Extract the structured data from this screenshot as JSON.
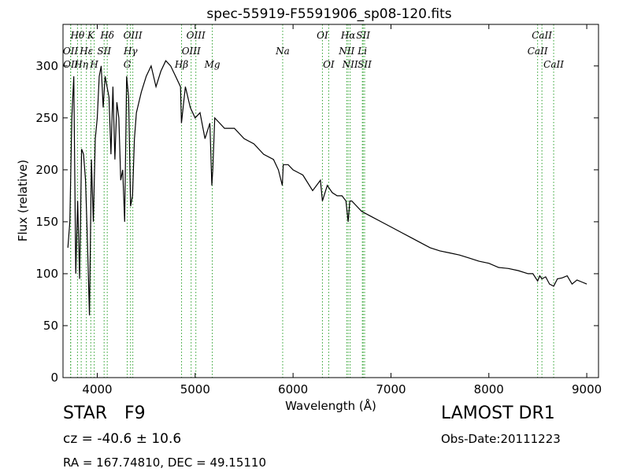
{
  "chart_data": {
    "type": "line",
    "title": "spec-55919-F5591906_sp08-120.fits",
    "xlabel": "Wavelength (Å)",
    "ylabel": "Flux (relative)",
    "xlim": [
      3650,
      9120
    ],
    "ylim": [
      0,
      340
    ],
    "xticks": [
      4000,
      5000,
      6000,
      7000,
      8000,
      9000
    ],
    "yticks": [
      0,
      50,
      100,
      150,
      200,
      250,
      300
    ],
    "grid": false,
    "series": [
      {
        "color": "#000000",
        "x": [
          3700,
          3720,
          3740,
          3760,
          3780,
          3800,
          3820,
          3840,
          3860,
          3880,
          3900,
          3920,
          3940,
          3960,
          3980,
          4000,
          4020,
          4040,
          4060,
          4080,
          4100,
          4120,
          4140,
          4160,
          4180,
          4200,
          4220,
          4240,
          4260,
          4280,
          4300,
          4320,
          4340,
          4360,
          4380,
          4400,
          4450,
          4500,
          4550,
          4600,
          4650,
          4700,
          4750,
          4800,
          4850,
          4860,
          4900,
          4950,
          5000,
          5050,
          5100,
          5150,
          5170,
          5180,
          5200,
          5250,
          5300,
          5400,
          5500,
          5600,
          5700,
          5800,
          5850,
          5890,
          5900,
          5950,
          6000,
          6100,
          6200,
          6280,
          6300,
          6350,
          6400,
          6450,
          6500,
          6540,
          6563,
          6580,
          6600,
          6700,
          6800,
          6900,
          7000,
          7100,
          7200,
          7300,
          7400,
          7500,
          7600,
          7700,
          7800,
          7900,
          8000,
          8100,
          8200,
          8300,
          8400,
          8450,
          8498,
          8520,
          8542,
          8580,
          8620,
          8662,
          8700,
          8750,
          8800,
          8850,
          8900,
          8950,
          9000
        ],
        "values": [
          125,
          150,
          250,
          290,
          100,
          170,
          95,
          220,
          215,
          190,
          130,
          60,
          210,
          150,
          230,
          250,
          290,
          300,
          260,
          290,
          280,
          270,
          215,
          280,
          210,
          265,
          250,
          190,
          200,
          150,
          290,
          270,
          165,
          175,
          230,
          255,
          275,
          290,
          300,
          280,
          295,
          305,
          300,
          290,
          280,
          245,
          280,
          260,
          250,
          255,
          230,
          245,
          185,
          200,
          250,
          245,
          240,
          240,
          230,
          225,
          215,
          210,
          200,
          185,
          205,
          205,
          200,
          195,
          180,
          190,
          170,
          185,
          178,
          175,
          175,
          170,
          150,
          170,
          170,
          160,
          155,
          150,
          145,
          140,
          135,
          130,
          125,
          122,
          120,
          118,
          115,
          112,
          110,
          106,
          105,
          103,
          100,
          100,
          93,
          98,
          95,
          97,
          90,
          88,
          95,
          96,
          98,
          90,
          94,
          92,
          90
        ]
      }
    ],
    "spectral_lines": [
      {
        "name": "OII",
        "wavelength": 3727,
        "row": 1
      },
      {
        "name": "OII",
        "wavelength": 3729,
        "row": 2
      },
      {
        "name": "Hθ",
        "wavelength": 3798,
        "row": 0
      },
      {
        "name": "Hη",
        "wavelength": 3836,
        "row": 2
      },
      {
        "name": "Hε",
        "wavelength": 3889,
        "row": 1
      },
      {
        "name": "K",
        "wavelength": 3934,
        "row": 0
      },
      {
        "name": "H",
        "wavelength": 3969,
        "row": 2
      },
      {
        "name": "SII",
        "wavelength": 4070,
        "row": 1
      },
      {
        "name": "Hδ",
        "wavelength": 4102,
        "row": 0
      },
      {
        "name": "G",
        "wavelength": 4306,
        "row": 2
      },
      {
        "name": "Hγ",
        "wavelength": 4340,
        "row": 1
      },
      {
        "name": "OIII",
        "wavelength": 4363,
        "row": 0
      },
      {
        "name": "Hβ",
        "wavelength": 4861,
        "row": 2
      },
      {
        "name": "OIII",
        "wavelength": 4959,
        "row": 1
      },
      {
        "name": "OIII",
        "wavelength": 5007,
        "row": 0
      },
      {
        "name": "Mg",
        "wavelength": 5175,
        "row": 2
      },
      {
        "name": "Na",
        "wavelength": 5894,
        "row": 1
      },
      {
        "name": "OI",
        "wavelength": 6300,
        "row": 0
      },
      {
        "name": "OI",
        "wavelength": 6364,
        "row": 2
      },
      {
        "name": "NII",
        "wavelength": 6548,
        "row": 1
      },
      {
        "name": "Hα",
        "wavelength": 6563,
        "row": 0
      },
      {
        "name": "NII",
        "wavelength": 6583,
        "row": 2
      },
      {
        "name": "Li",
        "wavelength": 6708,
        "row": 1
      },
      {
        "name": "SII",
        "wavelength": 6716,
        "row": 0
      },
      {
        "name": "SII",
        "wavelength": 6731,
        "row": 2
      },
      {
        "name": "CaII",
        "wavelength": 8498,
        "row": 1
      },
      {
        "name": "CaII",
        "wavelength": 8542,
        "row": 0
      },
      {
        "name": "CaII",
        "wavelength": 8662,
        "row": 2
      }
    ],
    "line_marker_color": "#2ca02c"
  },
  "info": {
    "class_label": "STAR",
    "subclass_label": "F9",
    "redshift_text": "cz = -40.6 ± 10.6",
    "coords_text": "RA = 167.74810, DEC = 49.15110",
    "survey_text": "LAMOST DR1",
    "obs_date_text": "Obs-Date:20111223"
  }
}
